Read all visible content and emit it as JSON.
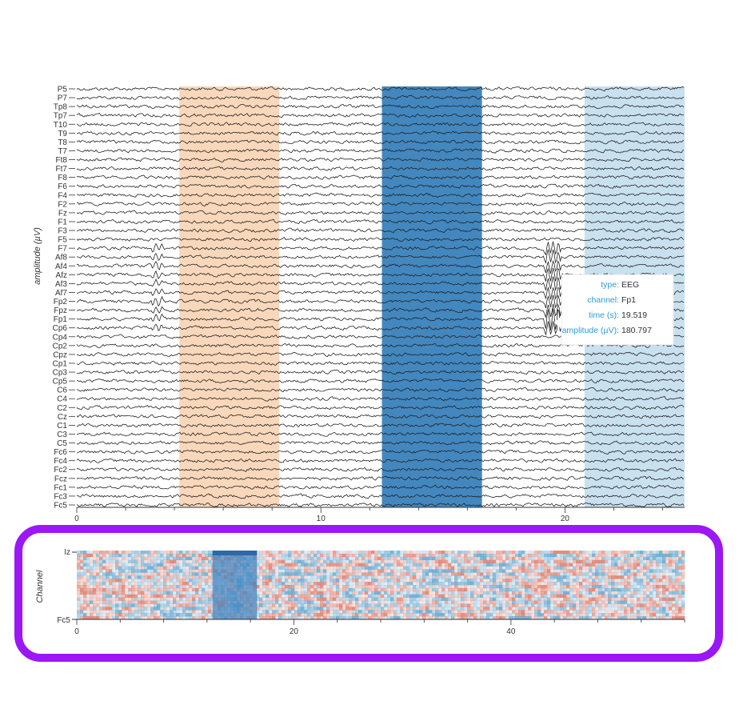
{
  "chart_data": [
    {
      "type": "line",
      "ylabel": "amplitude (µV)",
      "xlim": [
        0,
        24.9
      ],
      "xticks": [
        0,
        10,
        20
      ],
      "channels": [
        "P5",
        "P7",
        "Tp8",
        "Tp7",
        "T10",
        "T9",
        "T8",
        "T7",
        "Ft8",
        "Ft7",
        "F8",
        "F6",
        "F4",
        "F2",
        "Fz",
        "F1",
        "F3",
        "F5",
        "F7",
        "Af8",
        "Af4",
        "Afz",
        "Af3",
        "Af7",
        "Fp2",
        "Fpz",
        "Fp1",
        "Cp6",
        "Cp4",
        "Cp2",
        "Cpz",
        "Cp1",
        "Cp3",
        "Cp5",
        "C6",
        "C4",
        "C2",
        "Cz",
        "C1",
        "C3",
        "C5",
        "Fc6",
        "Fc4",
        "Fc2",
        "Fcz",
        "Fc1",
        "Fc3",
        "Fc5"
      ],
      "spans": [
        {
          "start": 4.2,
          "end": 8.3,
          "color": "#f6c9a4",
          "opacity": 0.75
        },
        {
          "start": 12.5,
          "end": 16.6,
          "color": "#2f7ab8",
          "opacity": 0.9
        },
        {
          "start": 20.8,
          "end": 24.9,
          "color": "#b7d5ea",
          "opacity": 0.75
        }
      ],
      "tooltip": {
        "rows": [
          {
            "key": "type:",
            "value": "EEG"
          },
          {
            "key": "channel:",
            "value": "Fp1"
          },
          {
            "key": "time (s):",
            "value": "19.519"
          },
          {
            "key": "amplitude (µV):",
            "value": "180.797"
          }
        ]
      }
    },
    {
      "type": "heatmap",
      "ylabel": "Channel",
      "xlim": [
        0,
        56
      ],
      "xticks": [
        0,
        20,
        40
      ],
      "y_top_label": "Iz",
      "y_bottom_label": "Fc5",
      "selection": {
        "start": 12.5,
        "end": 16.6
      }
    }
  ],
  "colors": {
    "highlight_border": "#9b17f5",
    "trace": "#222222"
  }
}
